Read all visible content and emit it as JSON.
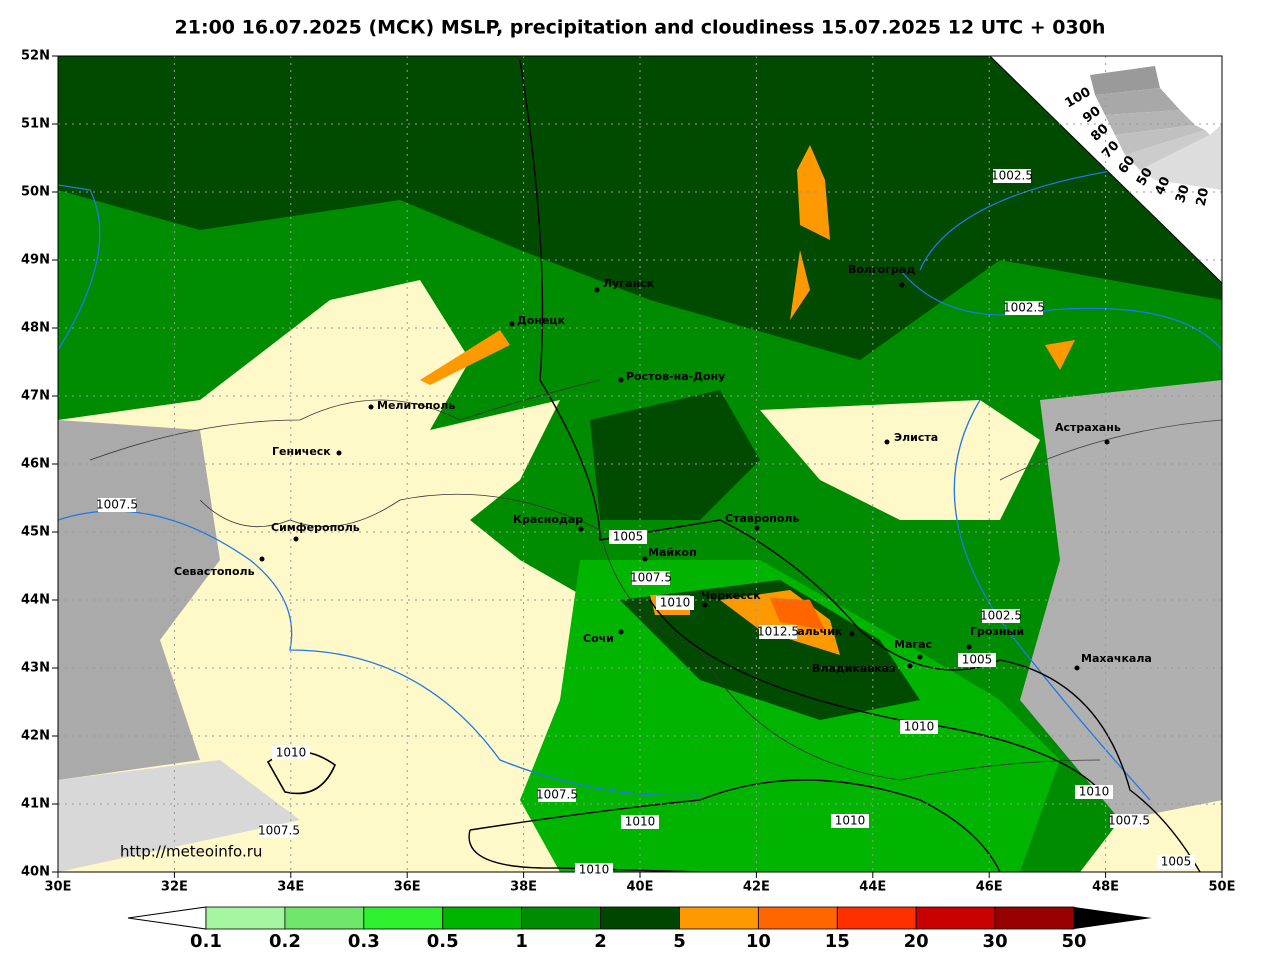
{
  "header": {
    "title": "21:00 16.07.2025 (МСК) MSLP, precipitation and cloudiness 15.07.2025 12 UTC + 030h"
  },
  "map": {
    "lat_labels": [
      "52N",
      "51N",
      "50N",
      "49N",
      "48N",
      "47N",
      "46N",
      "45N",
      "44N",
      "43N",
      "42N",
      "41N",
      "40N"
    ],
    "lon_labels": [
      "30E",
      "32E",
      "34E",
      "36E",
      "38E",
      "40E",
      "42E",
      "44E",
      "46E",
      "48E",
      "50E"
    ],
    "cities": [
      "Луганск",
      "Донецк",
      "Волгоград",
      "Ростов-на-Дону",
      "Мелитополь",
      "Геническ",
      "Элиста",
      "Астрахань",
      "Симферополь",
      "Севастополь",
      "Краснодар",
      "Ставрополь",
      "Майкоп",
      "Черкесск",
      "Нальчик",
      "Сочи",
      "Магас",
      "Владикавказ",
      "Грозный",
      "Махачкала"
    ],
    "isobar_labels": [
      "1002.5",
      "1002.5",
      "1007.5",
      "1005",
      "1007.5",
      "1010",
      "1012.5",
      "1002.5",
      "1005",
      "1010",
      "1010",
      "1010",
      "1007.5",
      "1010",
      "1010",
      "1007.5",
      "1007.5",
      "1005",
      "1010"
    ],
    "url": "http://meteoinfo.ru"
  },
  "cloud_scale": {
    "labels": [
      "100",
      "90",
      "80",
      "70",
      "60",
      "50",
      "40",
      "30",
      "20"
    ]
  },
  "precip_legend": {
    "labels": [
      "0.1",
      "0.2",
      "0.3",
      "0.5",
      "1",
      "2",
      "5",
      "10",
      "15",
      "20",
      "30",
      "50"
    ]
  }
}
